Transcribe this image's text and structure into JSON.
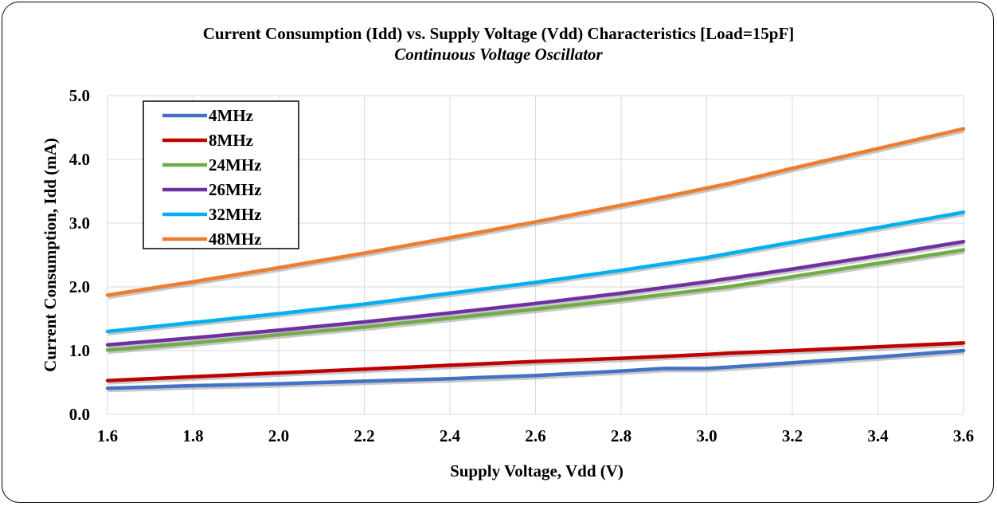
{
  "chart_data": {
    "type": "line",
    "title": "Current Consumption (Idd) vs. Supply Voltage (Vdd) Characteristics [Load=15pF]",
    "subtitle": "Continuous Voltage Oscillator",
    "xlabel": "Supply Voltage, Vdd (V)",
    "ylabel": "Current Consumption, Idd (mA)",
    "xlim": [
      1.6,
      3.6
    ],
    "ylim": [
      0.0,
      5.0
    ],
    "x_ticks": [
      "1.6",
      "1.8",
      "2.0",
      "2.2",
      "2.4",
      "2.6",
      "2.8",
      "3.0",
      "3.2",
      "3.4",
      "3.6"
    ],
    "y_ticks": [
      "0.0",
      "1.0",
      "2.0",
      "3.0",
      "4.0",
      "5.0"
    ],
    "grid": true,
    "legend_position": "top-left",
    "x": [
      1.6,
      1.8,
      2.0,
      2.2,
      2.4,
      2.6,
      2.8,
      2.9,
      3.0,
      3.05,
      3.2,
      3.4,
      3.6
    ],
    "series": [
      {
        "name": "4MHz",
        "color": "#4472C4",
        "values": [
          0.41,
          0.45,
          0.48,
          0.52,
          0.56,
          0.61,
          0.68,
          0.72,
          0.72,
          0.74,
          0.81,
          0.9,
          1.0
        ]
      },
      {
        "name": "8MHz",
        "color": "#C00000",
        "values": [
          0.53,
          0.59,
          0.65,
          0.71,
          0.77,
          0.83,
          0.88,
          0.91,
          0.94,
          0.96,
          1.0,
          1.06,
          1.12
        ]
      },
      {
        "name": "24MHz",
        "color": "#70AD47",
        "values": [
          1.01,
          1.12,
          1.25,
          1.37,
          1.51,
          1.65,
          1.8,
          1.88,
          1.96,
          2.0,
          2.16,
          2.37,
          2.58
        ]
      },
      {
        "name": "26MHz",
        "color": "#7030A0",
        "values": [
          1.09,
          1.2,
          1.32,
          1.45,
          1.59,
          1.74,
          1.9,
          1.99,
          2.08,
          2.13,
          2.28,
          2.49,
          2.71
        ]
      },
      {
        "name": "32MHz",
        "color": "#00B0F0",
        "values": [
          1.3,
          1.44,
          1.58,
          1.73,
          1.9,
          2.07,
          2.26,
          2.36,
          2.46,
          2.52,
          2.7,
          2.93,
          3.17
        ]
      },
      {
        "name": "48MHz",
        "color": "#ED7D31",
        "values": [
          1.87,
          2.08,
          2.3,
          2.53,
          2.77,
          3.02,
          3.28,
          3.41,
          3.55,
          3.62,
          3.86,
          4.17,
          4.48
        ]
      }
    ]
  }
}
